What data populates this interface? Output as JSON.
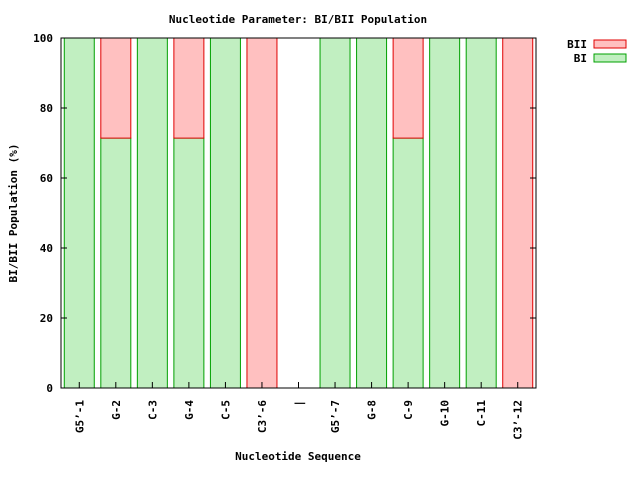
{
  "chart_data": {
    "type": "bar",
    "stacked": true,
    "title": "Nucleotide Parameter: BI/BII Population",
    "xlabel": "Nucleotide Sequence",
    "ylabel": "BI/BII Population (%)",
    "ylim": [
      0,
      100
    ],
    "yticks": [
      "0",
      "20",
      "40",
      "60",
      "80",
      "100"
    ],
    "grid": false,
    "legend_position": "top-right",
    "categories": [
      "G5’-1",
      "G-2",
      "C-3",
      "G-4",
      "C-5",
      "C3’-6",
      "|",
      "G5’-7",
      "G-8",
      "C-9",
      "G-10",
      "C-11",
      "C3’-12"
    ],
    "series": [
      {
        "name": "BI",
        "fill": "#c1efc1",
        "stroke": "#00a000",
        "values": [
          100,
          71.4,
          100,
          71.4,
          100,
          0,
          0,
          100,
          100,
          71.4,
          100,
          100,
          0
        ]
      },
      {
        "name": "BII",
        "fill": "#ffc0c0",
        "stroke": "#e00000",
        "values": [
          0,
          28.6,
          0,
          28.6,
          0,
          100,
          0,
          0,
          0,
          28.6,
          0,
          0,
          100
        ]
      }
    ],
    "legend_order": [
      "BII",
      "BI"
    ]
  }
}
